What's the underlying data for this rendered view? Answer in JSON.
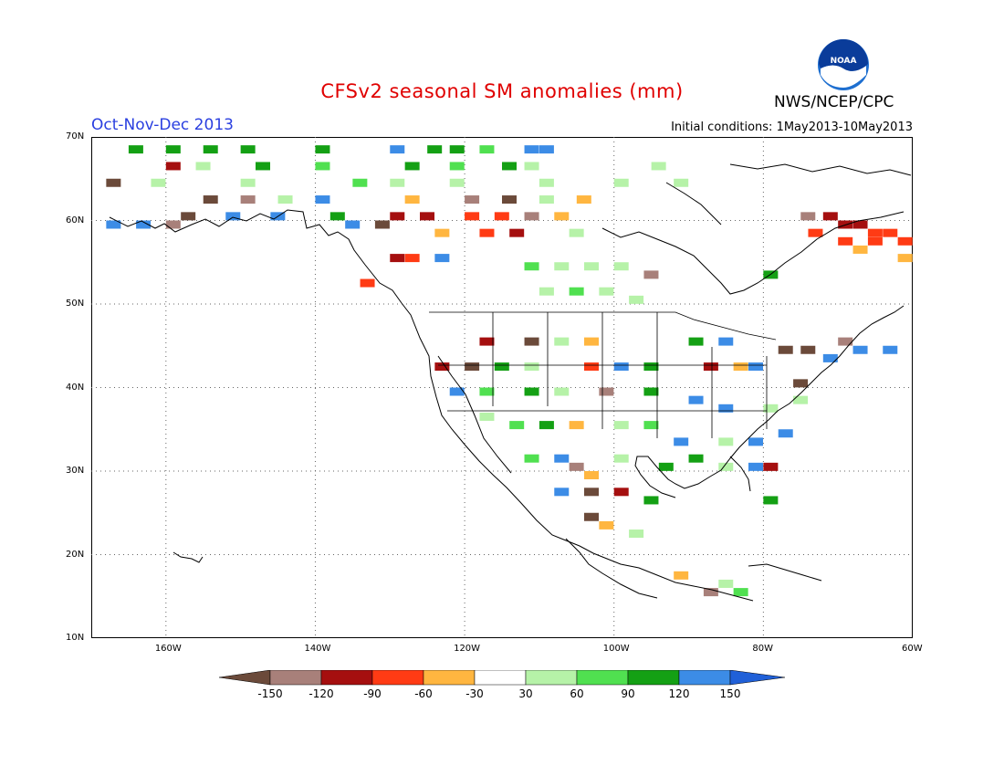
{
  "header": {
    "title": "CFSv2 seasonal SM anomalies (mm)",
    "period": "Oct-Nov-Dec 2013",
    "initial_conditions": "Initial conditions: 1May2013-10May2013",
    "agency": "NWS/NCEP/CPC",
    "logo_text": "NOAA"
  },
  "map": {
    "lon_range": [
      -170,
      -60
    ],
    "lat_range": [
      10,
      70
    ],
    "lat_labels": [
      "70N",
      "60N",
      "50N",
      "40N",
      "30N",
      "20N",
      "10N"
    ],
    "lon_labels": [
      "160W",
      "140W",
      "120W",
      "100W",
      "80W",
      "60W"
    ],
    "gridlines": "dotted"
  },
  "colorbar": {
    "levels": [
      "-150",
      "-120",
      "-90",
      "-60",
      "-30",
      "30",
      "60",
      "90",
      "120",
      "150"
    ],
    "colors": [
      "#6b4a3a",
      "#a8807a",
      "#a50f0f",
      "#ff3b14",
      "#ffb640",
      "#ffffff",
      "#b6f2a8",
      "#50e050",
      "#14a014",
      "#3c8ce6",
      "#2060d8"
    ]
  },
  "colors": {
    "title": "#e00000",
    "period": "#2a3fe0"
  }
}
